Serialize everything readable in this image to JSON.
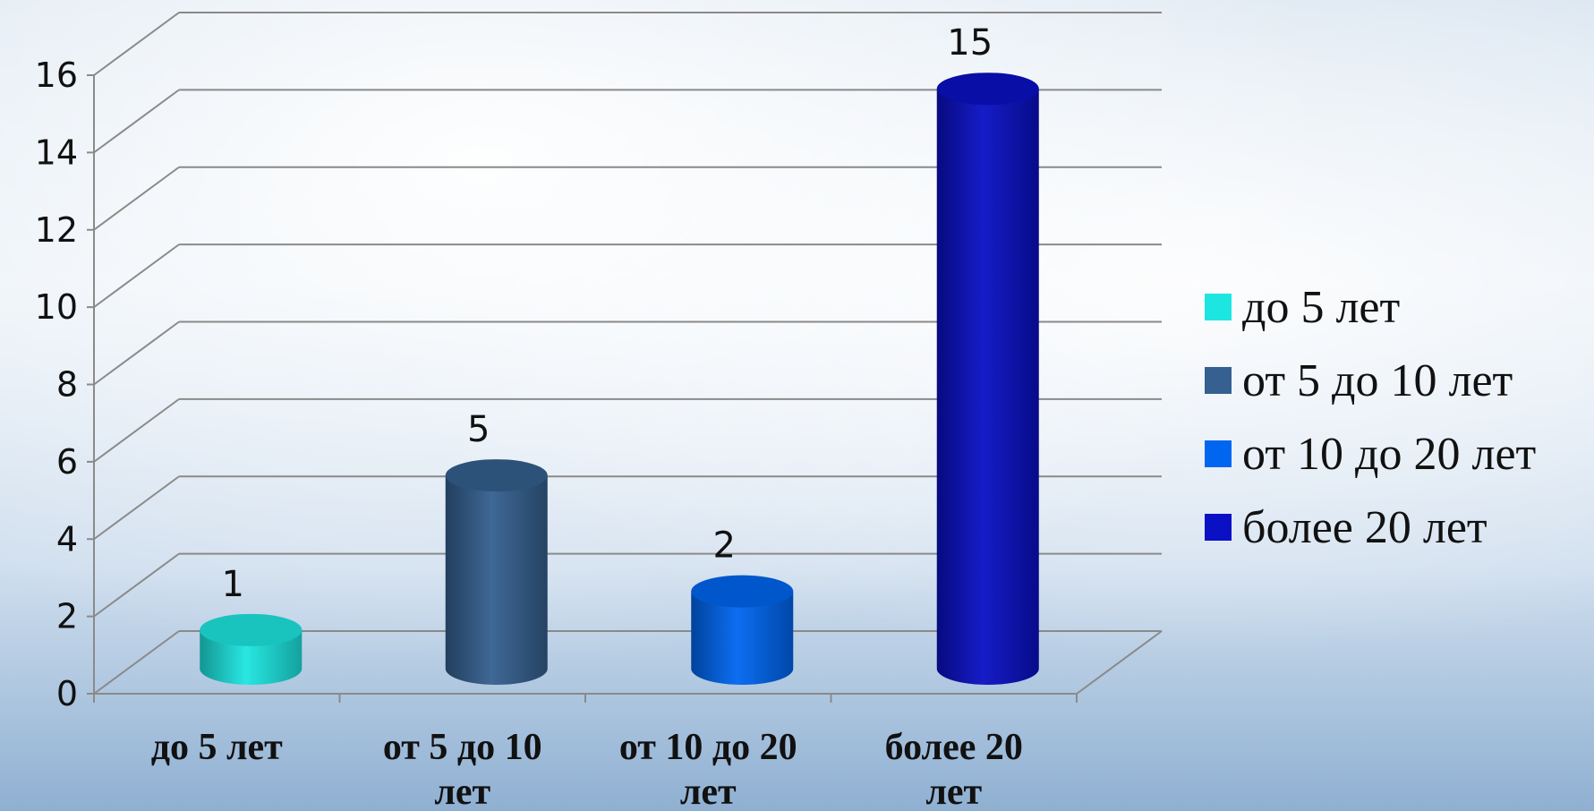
{
  "chart_data": {
    "type": "bar",
    "categories": [
      "до 5 лет",
      "от 5 до 10 лет",
      "от 10 до 20 лет",
      "более 20 лет"
    ],
    "values": [
      1,
      5,
      2,
      15
    ],
    "colors": [
      "#1de6e0",
      "#35608f",
      "#0066f0",
      "#0a10c4"
    ],
    "data_labels": [
      "1",
      "5",
      "2",
      "15"
    ],
    "ylim": [
      0,
      16
    ],
    "yticks": [
      0,
      2,
      4,
      6,
      8,
      10,
      12,
      14,
      16
    ],
    "grid": true,
    "bar_shape": "cylinder",
    "legend_position": "right",
    "legend": [
      "до 5 лет",
      "от 5 до 10 лет",
      "от 10 до 20 лет",
      "более 20 лет"
    ]
  }
}
